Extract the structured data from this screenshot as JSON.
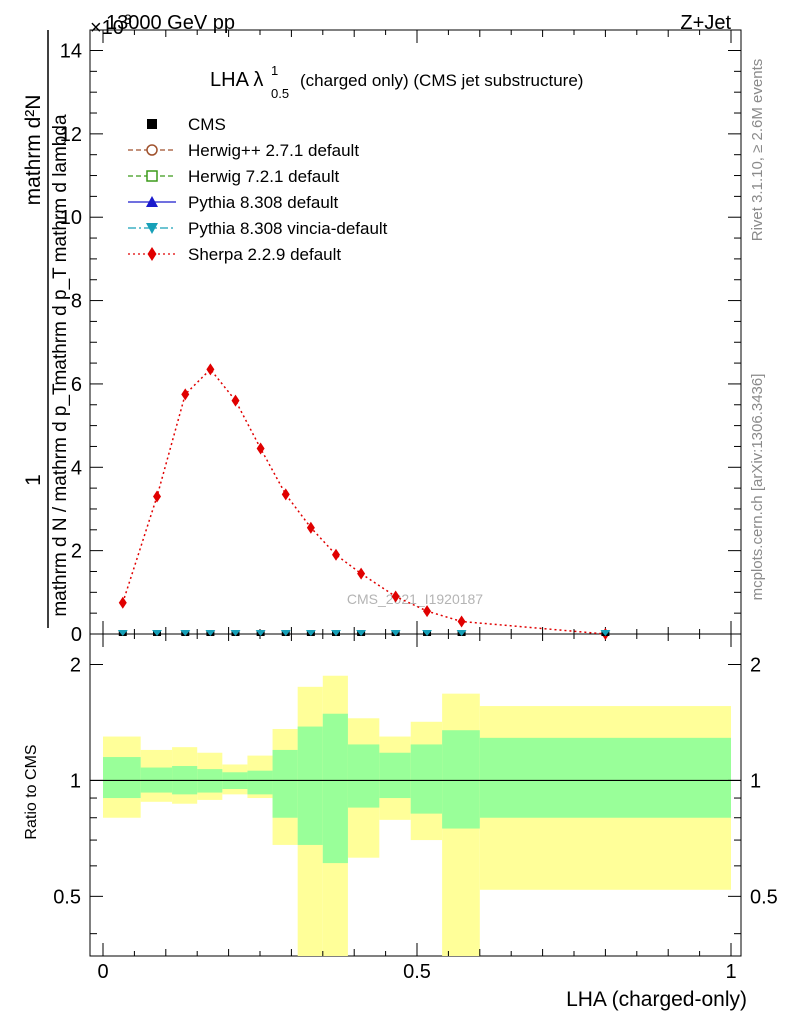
{
  "header": {
    "energy_label": "13000 GeV pp",
    "process_label": "Z+Jet",
    "exponent_prefix": "×10",
    "exponent_value": "3"
  },
  "main_plot": {
    "title_main": "LHA λ",
    "title_sup": "1",
    "title_sub": "0.5",
    "title_rest": "(charged only) (CMS jet substructure)",
    "ylabel_numerator": "mathrm d²N",
    "ylabel_denominator": "mathrm d p_T mathrm d lambda",
    "ylabel_prefix_num": "1",
    "ylabel_prefix_den": "mathrm d N / mathrm d p_T",
    "watermark": "CMS_2021_I1920187",
    "ytick_labels": [
      "0",
      "2",
      "4",
      "6",
      "8",
      "10",
      "12",
      "14"
    ]
  },
  "ratio_plot": {
    "ylabel": "Ratio to CMS",
    "ytick_labels_left": [
      "0.5",
      "1",
      "2"
    ],
    "ytick_labels_right": [
      "0.5",
      "1",
      "2"
    ]
  },
  "xaxis": {
    "label": "LHA (charged-only)",
    "tick_labels": [
      "0",
      "0.5",
      "1"
    ]
  },
  "side_texts": {
    "rivet": "Rivet 3.1.10, ≥ 2.6M events",
    "mcplots": "mcplots.cern.ch [arXiv:1306.3436]"
  },
  "legend": [
    {
      "name": "CMS",
      "color": "#000000",
      "marker": "square-filled",
      "line": "none"
    },
    {
      "name": "Herwig++ 2.7.1 default",
      "color": "#a0522d",
      "marker": "circle-open",
      "line": "dashed"
    },
    {
      "name": "Herwig 7.2.1 default",
      "color": "#3c9a1a",
      "marker": "square-open",
      "line": "dashed"
    },
    {
      "name": "Pythia 8.308 default",
      "color": "#1a1acc",
      "marker": "triangle-up",
      "line": "solid"
    },
    {
      "name": "Pythia 8.308 vincia-default",
      "color": "#17a0b8",
      "marker": "triangle-down",
      "line": "dashdot"
    },
    {
      "name": "Sherpa 2.2.9 default",
      "color": "#e00000",
      "marker": "diamond",
      "line": "dotted"
    }
  ],
  "chart_data": [
    {
      "type": "line",
      "title": "LHA λ^1_0.5 (charged only) (CMS jet substructure)",
      "xlabel": "LHA (charged-only)",
      "ylabel": "1/(mathrm d N / mathrm d p_T) mathrm d²N / (mathrm d p_T mathrm d lambda)",
      "xlim": [
        0,
        1
      ],
      "ylim": [
        0,
        14.5
      ],
      "y_scale_factor": "×10^3",
      "x": [
        0.0315,
        0.086,
        0.131,
        0.171,
        0.211,
        0.251,
        0.291,
        0.331,
        0.371,
        0.411,
        0.466,
        0.516,
        0.571,
        0.8
      ],
      "series": [
        {
          "name": "Sherpa 2.2.9 default",
          "values": [
            0.75,
            3.3,
            5.75,
            6.35,
            5.6,
            4.45,
            3.35,
            2.55,
            1.9,
            1.45,
            0.9,
            0.55,
            0.3,
            0.0
          ]
        },
        {
          "name": "CMS",
          "values": [
            0,
            0,
            0,
            0,
            0,
            0,
            0,
            0,
            0,
            0,
            0,
            0,
            0,
            0
          ]
        },
        {
          "name": "Pythia 8.308 vincia-default",
          "values": [
            0,
            0,
            0,
            0,
            0,
            0,
            0,
            0,
            0,
            0,
            0,
            0,
            0,
            0
          ]
        }
      ]
    },
    {
      "type": "area",
      "ylabel": "Ratio to CMS",
      "xlim": [
        0,
        1
      ],
      "ylim": [
        0.35,
        2.4
      ],
      "y_scale": "log",
      "bins": [
        0,
        0.06,
        0.11,
        0.15,
        0.19,
        0.23,
        0.27,
        0.31,
        0.35,
        0.39,
        0.44,
        0.49,
        0.54,
        0.6,
        1.0
      ],
      "band_inner_low": [
        0.9,
        0.93,
        0.92,
        0.93,
        0.95,
        0.92,
        0.8,
        0.68,
        0.61,
        0.85,
        0.9,
        0.82,
        0.75,
        0.8
      ],
      "band_inner_high": [
        1.15,
        1.08,
        1.09,
        1.07,
        1.05,
        1.06,
        1.2,
        1.38,
        1.49,
        1.24,
        1.18,
        1.24,
        1.35,
        1.29
      ],
      "band_outer_low": [
        0.8,
        0.88,
        0.87,
        0.89,
        0.92,
        0.9,
        0.68,
        0.3,
        0.3,
        0.63,
        0.79,
        0.7,
        0.3,
        0.52
      ],
      "band_outer_high": [
        1.3,
        1.2,
        1.22,
        1.18,
        1.1,
        1.16,
        1.36,
        1.75,
        1.87,
        1.45,
        1.3,
        1.42,
        1.68,
        1.56
      ],
      "reference": 1.0
    }
  ]
}
